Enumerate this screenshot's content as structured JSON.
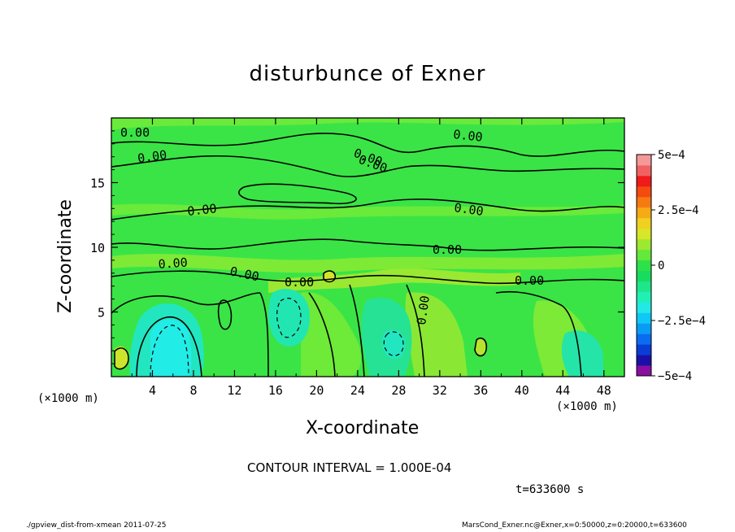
{
  "chart_data": {
    "type": "contour",
    "title": "disturbunce of Exner",
    "xlabel": "X-coordinate",
    "ylabel": "Z-coordinate",
    "x_unit_left": "(×1000 m)",
    "x_unit_right": "(×1000 m)",
    "xlim": [
      0,
      50
    ],
    "ylim": [
      0,
      20
    ],
    "x_ticks": [
      "4",
      "8",
      "12",
      "16",
      "20",
      "24",
      "28",
      "32",
      "36",
      "40",
      "44",
      "48"
    ],
    "y_ticks": [
      "5",
      "10",
      "15"
    ],
    "contour_labels": [
      "0.00",
      "0.00",
      "0.00",
      "0.00",
      "0.00",
      "0.00",
      "0.00",
      "0.00",
      "0.00",
      "0.00",
      "0.00",
      "0.00",
      "0.00"
    ],
    "colorbar": {
      "ticks": [
        "5e−4",
        "2.5e−4",
        "0",
        "−2.5e−4",
        "−5e−4"
      ],
      "levels": [
        -0.0005,
        -0.00045,
        -0.0004,
        -0.00035,
        -0.0003,
        -0.00025,
        -0.0002,
        -0.00015,
        -0.0001,
        -5e-05,
        0,
        5e-05,
        0.0001,
        0.00015,
        0.0002,
        0.00025,
        0.0003,
        0.00035,
        0.0004,
        0.00045,
        0.0005
      ],
      "colors": [
        "#8a0fa0",
        "#1a10a8",
        "#0a3cd6",
        "#0a6cf0",
        "#0a9cf5",
        "#10c8f5",
        "#22e8e6",
        "#20f0b4",
        "#1ee68a",
        "#18dc5e",
        "#2ee04a",
        "#64e83a",
        "#9ee830",
        "#d8e62a",
        "#f0d020",
        "#f5aa16",
        "#f57a12",
        "#f54a10",
        "#f01a1a",
        "#f06262",
        "#f59898"
      ]
    },
    "contour_interval": "CONTOUR INTERVAL = 1.000E-04",
    "time": "t=633600 s",
    "footer_left": "./gpview_dist-from-xmean  2011-07-25",
    "footer_right": "MarsCond_Exner.nc@Exner,x=0:50000,z=0:20000,t=633600"
  }
}
